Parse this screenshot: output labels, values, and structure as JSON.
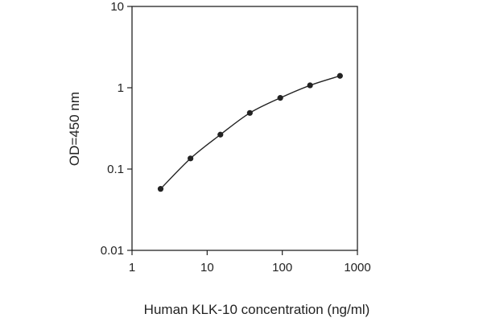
{
  "chart_data": {
    "type": "line",
    "title": "",
    "xlabel": "Human KLK-10 concentration (ng/ml)",
    "ylabel": "OD=450 nm",
    "xscale": "log",
    "yscale": "log",
    "xlim": [
      1,
      1000
    ],
    "ylim": [
      0.01,
      10
    ],
    "x_ticks": [
      "1",
      "10",
      "100",
      "1000"
    ],
    "y_ticks": [
      "0.01",
      "0.1",
      "1",
      "10"
    ],
    "grid": false,
    "legend": "none",
    "series": [
      {
        "x": [
          2.4,
          6,
          15,
          37,
          94,
          234,
          586
        ],
        "y": [
          0.057,
          0.135,
          0.265,
          0.49,
          0.75,
          1.07,
          1.4
        ],
        "color": "#222222",
        "marker": "circle"
      }
    ]
  }
}
